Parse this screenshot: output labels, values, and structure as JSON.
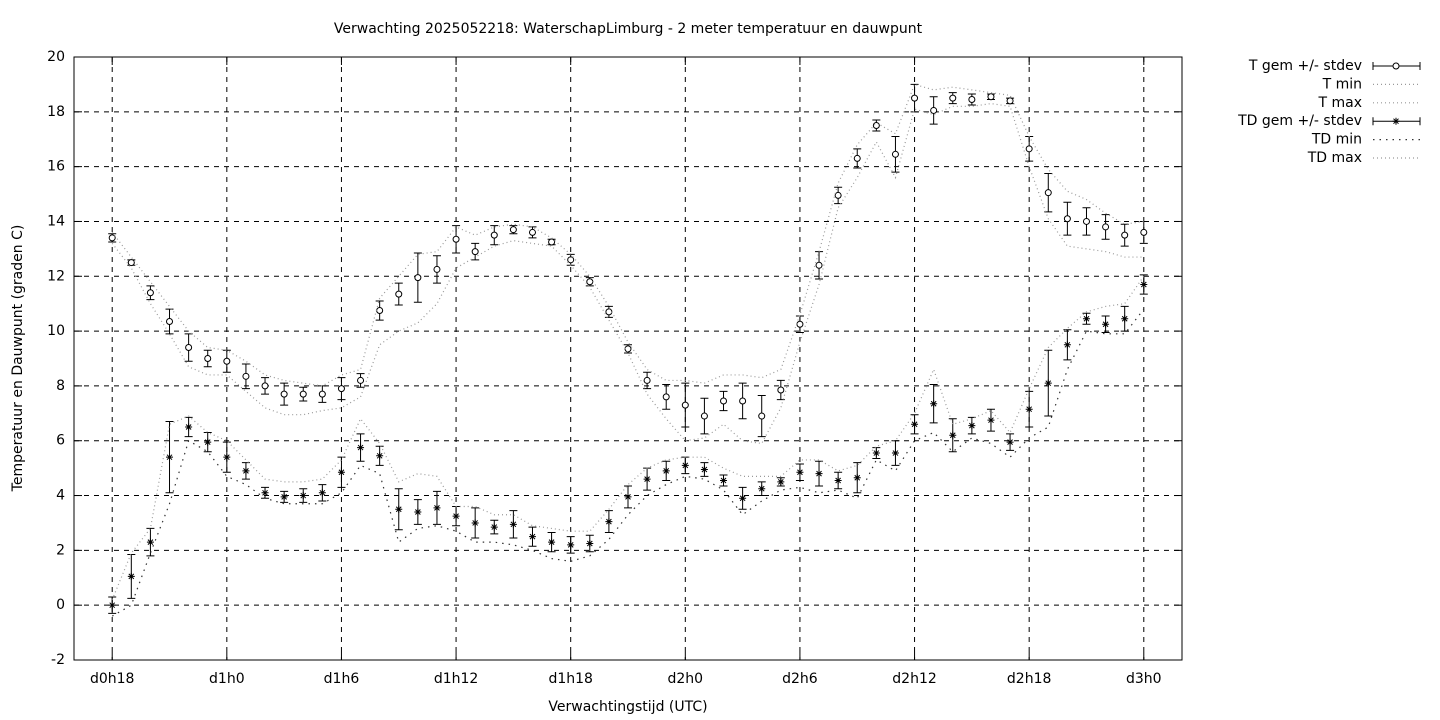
{
  "chart_data": {
    "type": "errorbar",
    "title": "Verwachting 2025052218: WaterschapLimburg - 2 meter temperatuur en dauwpunt",
    "xlabel": "Verwachtingstijd (UTC)",
    "ylabel": "Temperatuur en Dauwpunt (graden C)",
    "xlim": [
      16,
      74
    ],
    "ylim": [
      -2,
      20
    ],
    "xticks": [
      {
        "value": 18,
        "label": "d0h18"
      },
      {
        "value": 24,
        "label": "d1h0"
      },
      {
        "value": 30,
        "label": "d1h6"
      },
      {
        "value": 36,
        "label": "d1h12"
      },
      {
        "value": 42,
        "label": "d1h18"
      },
      {
        "value": 48,
        "label": "d2h0"
      },
      {
        "value": 54,
        "label": "d2h6"
      },
      {
        "value": 60,
        "label": "d2h12"
      },
      {
        "value": 66,
        "label": "d2h18"
      },
      {
        "value": 72,
        "label": "d3h0"
      }
    ],
    "yticks": [
      -2,
      0,
      2,
      4,
      6,
      8,
      10,
      12,
      14,
      16,
      18,
      20
    ],
    "grid": true,
    "legend": "outside-top-right",
    "x": [
      18,
      19,
      20,
      21,
      22,
      23,
      24,
      25,
      26,
      27,
      28,
      29,
      30,
      31,
      32,
      33,
      34,
      35,
      36,
      37,
      38,
      39,
      40,
      41,
      42,
      43,
      44,
      45,
      46,
      47,
      48,
      49,
      50,
      51,
      52,
      53,
      54,
      55,
      56,
      57,
      58,
      59,
      60,
      61,
      62,
      63,
      64,
      65,
      66,
      67,
      68,
      69,
      70,
      71,
      72
    ],
    "series": [
      {
        "name": "T gem +/- stdev",
        "color": "#000000",
        "marker": "circle",
        "values": [
          13.4,
          12.5,
          11.4,
          10.35,
          9.4,
          9.0,
          8.9,
          8.35,
          8.0,
          7.7,
          7.7,
          7.7,
          7.9,
          8.2,
          10.75,
          11.35,
          11.95,
          12.25,
          13.35,
          12.9,
          13.5,
          13.7,
          13.6,
          13.25,
          12.6,
          11.8,
          10.7,
          9.35,
          8.2,
          7.6,
          7.3,
          6.9,
          7.45,
          7.45,
          6.9,
          7.85,
          10.25,
          12.4,
          14.95,
          16.3,
          17.5,
          16.45,
          18.5,
          18.05,
          18.5,
          18.45,
          18.55,
          18.4,
          16.65,
          15.05,
          14.1,
          14.0,
          13.8,
          13.5,
          13.6
        ],
        "errors": [
          0.15,
          0.1,
          0.25,
          0.45,
          0.5,
          0.3,
          0.4,
          0.45,
          0.3,
          0.4,
          0.25,
          0.3,
          0.4,
          0.25,
          0.35,
          0.4,
          0.9,
          0.5,
          0.5,
          0.3,
          0.35,
          0.15,
          0.2,
          0.1,
          0.2,
          0.15,
          0.2,
          0.15,
          0.3,
          0.45,
          0.8,
          0.65,
          0.35,
          0.65,
          0.75,
          0.35,
          0.3,
          0.5,
          0.3,
          0.35,
          0.2,
          0.65,
          0.5,
          0.5,
          0.2,
          0.2,
          0.1,
          0.1,
          0.45,
          0.7,
          0.6,
          0.5,
          0.45,
          0.4,
          0.4
        ]
      },
      {
        "name": "T min",
        "color": "#999999",
        "dash": "1,3",
        "values": [
          13.2,
          12.3,
          11.0,
          9.9,
          8.7,
          8.4,
          8.4,
          7.8,
          7.2,
          6.95,
          6.95,
          7.1,
          7.2,
          7.6,
          9.5,
          10.0,
          10.3,
          11.0,
          12.3,
          12.7,
          13.1,
          13.3,
          13.2,
          13.1,
          12.4,
          11.6,
          10.4,
          9.2,
          7.7,
          6.8,
          6.0,
          6.1,
          6.6,
          6.0,
          5.9,
          7.2,
          9.6,
          11.7,
          14.5,
          15.6,
          16.9,
          15.6,
          18.1,
          17.9,
          18.2,
          18.2,
          18.3,
          18.2,
          16.0,
          14.1,
          13.1,
          13.0,
          12.9,
          12.7,
          12.7
        ]
      },
      {
        "name": "T max",
        "color": "#999999",
        "dash": "1,3",
        "values": [
          13.6,
          12.7,
          11.8,
          10.9,
          10.0,
          9.4,
          9.3,
          8.9,
          8.4,
          8.2,
          8.1,
          8.0,
          8.4,
          8.6,
          11.2,
          12.0,
          12.8,
          12.9,
          13.8,
          13.5,
          13.8,
          13.9,
          13.8,
          13.4,
          12.8,
          12.0,
          10.9,
          9.6,
          8.6,
          8.2,
          8.2,
          8.1,
          8.4,
          8.4,
          8.3,
          8.6,
          10.6,
          12.9,
          15.4,
          16.8,
          17.6,
          17.2,
          19.0,
          18.8,
          18.9,
          18.8,
          18.7,
          18.6,
          17.1,
          15.9,
          15.1,
          14.8,
          14.3,
          13.9,
          14.0
        ]
      },
      {
        "name": "TD gem +/- stdev",
        "color": "#000000",
        "marker": "star",
        "values": [
          0.0,
          1.05,
          2.3,
          5.4,
          6.5,
          5.95,
          5.4,
          4.9,
          4.1,
          3.95,
          4.0,
          4.1,
          4.85,
          5.75,
          5.45,
          3.5,
          3.4,
          3.55,
          3.25,
          3.0,
          2.85,
          2.95,
          2.5,
          2.3,
          2.2,
          2.25,
          3.05,
          3.95,
          4.6,
          4.9,
          5.1,
          4.95,
          4.55,
          3.9,
          4.25,
          4.5,
          4.85,
          4.8,
          4.55,
          4.65,
          5.55,
          5.55,
          6.6,
          7.35,
          6.2,
          6.55,
          6.75,
          5.95,
          7.15,
          8.1,
          9.5,
          10.45,
          10.25,
          10.45,
          11.7
        ],
        "errors": [
          0.3,
          0.8,
          0.5,
          1.3,
          0.35,
          0.35,
          0.55,
          0.3,
          0.2,
          0.2,
          0.25,
          0.3,
          0.55,
          0.5,
          0.35,
          0.75,
          0.45,
          0.6,
          0.35,
          0.55,
          0.25,
          0.5,
          0.35,
          0.35,
          0.3,
          0.3,
          0.4,
          0.4,
          0.4,
          0.35,
          0.3,
          0.25,
          0.2,
          0.4,
          0.25,
          0.15,
          0.3,
          0.45,
          0.3,
          0.55,
          0.2,
          0.45,
          0.35,
          0.7,
          0.6,
          0.3,
          0.4,
          0.3,
          0.65,
          1.2,
          0.55,
          0.2,
          0.3,
          0.45,
          0.35
        ]
      },
      {
        "name": "TD min",
        "color": "#333333",
        "dash": "1.5,5",
        "values": [
          -0.4,
          0.0,
          1.9,
          3.7,
          6.0,
          5.6,
          4.7,
          4.4,
          3.9,
          3.7,
          3.7,
          3.7,
          4.1,
          5.1,
          4.8,
          2.3,
          2.8,
          2.9,
          2.7,
          2.3,
          2.3,
          2.2,
          2.0,
          1.7,
          1.6,
          1.8,
          2.4,
          3.3,
          4.0,
          4.4,
          4.7,
          4.6,
          4.2,
          3.3,
          3.8,
          4.2,
          4.3,
          4.1,
          4.2,
          3.9,
          5.3,
          4.9,
          6.0,
          6.3,
          5.6,
          6.1,
          5.9,
          5.4,
          6.1,
          6.5,
          8.6,
          10.0,
          9.9,
          9.9,
          10.8
        ]
      },
      {
        "name": "TD max",
        "color": "#999999",
        "dash": "1,3",
        "values": [
          0.2,
          1.9,
          2.8,
          6.6,
          6.9,
          6.3,
          6.0,
          5.3,
          4.6,
          4.5,
          4.5,
          4.6,
          5.3,
          6.8,
          5.9,
          4.5,
          4.8,
          4.7,
          3.6,
          3.6,
          3.3,
          3.3,
          2.9,
          2.8,
          2.7,
          2.7,
          3.5,
          4.4,
          5.0,
          5.3,
          5.4,
          5.4,
          5.0,
          4.7,
          4.7,
          4.7,
          5.3,
          5.3,
          4.9,
          5.1,
          5.8,
          6.0,
          7.0,
          8.6,
          6.6,
          6.8,
          7.1,
          6.3,
          7.9,
          9.4,
          10.1,
          10.7,
          10.9,
          11.0,
          12.0
        ]
      }
    ]
  }
}
